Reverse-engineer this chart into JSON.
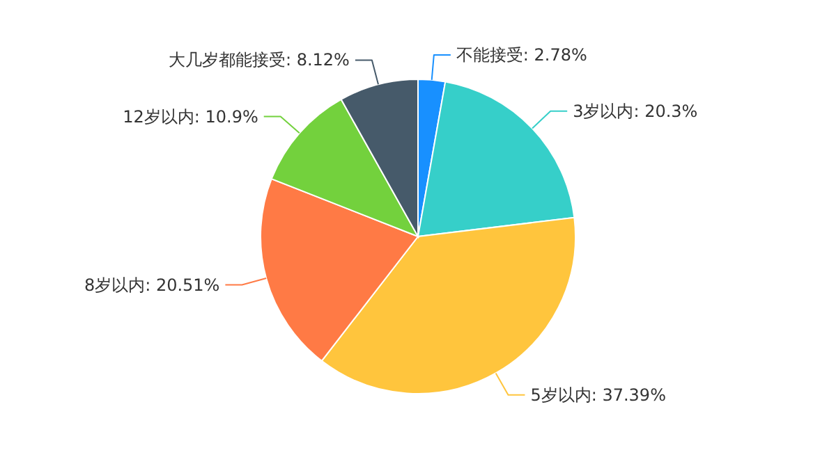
{
  "chart_data": {
    "type": "pie",
    "categories": [
      "不能接受",
      "3岁以内",
      "5岁以内",
      "8岁以内",
      "12岁以内",
      "大几岁都能接受"
    ],
    "values": [
      2.78,
      20.3,
      37.39,
      20.51,
      10.9,
      8.12
    ],
    "colors": [
      "#1890ff",
      "#36cfc9",
      "#ffc53d",
      "#ff7a45",
      "#73d13d",
      "#465a6a"
    ],
    "value_labels": [
      "2.78%",
      "20.3%",
      "37.39%",
      "20.51%",
      "10.9%",
      "8.12%"
    ]
  }
}
